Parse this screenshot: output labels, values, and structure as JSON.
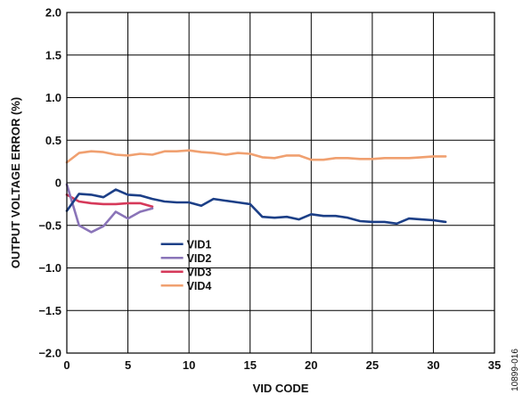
{
  "chart_data": {
    "type": "line",
    "title": "",
    "xlabel": "VID CODE",
    "ylabel": "OUTPUT VOLTAGE ERROR (%)",
    "xlim": [
      0,
      35
    ],
    "ylim": [
      -2.0,
      2.0
    ],
    "xticks": [
      0,
      5,
      10,
      15,
      20,
      25,
      30,
      35
    ],
    "yticks": [
      2.0,
      1.5,
      1.0,
      0.5,
      0,
      -0.5,
      -1.0,
      -1.5,
      -2.0
    ],
    "xtick_labels": [
      "0",
      "5",
      "10",
      "15",
      "20",
      "25",
      "30",
      "35"
    ],
    "ytick_labels": [
      "2.0",
      "1.5",
      "1.0",
      "0.5",
      "0",
      "−0.5",
      "−1.0",
      "−1.5",
      "−2.0"
    ],
    "grid": true,
    "legend_position": "center-left",
    "figure_id": "10899-016",
    "series": [
      {
        "name": "VID1",
        "color": "#1c3f87",
        "x": [
          0,
          1,
          2,
          3,
          4,
          5,
          6,
          7,
          8,
          9,
          10,
          11,
          12,
          13,
          14,
          15,
          16,
          17,
          18,
          19,
          20,
          21,
          22,
          23,
          24,
          25,
          26,
          27,
          28,
          29,
          30,
          31
        ],
        "y": [
          -0.33,
          -0.13,
          -0.14,
          -0.17,
          -0.08,
          -0.14,
          -0.15,
          -0.19,
          -0.22,
          -0.23,
          -0.23,
          -0.27,
          -0.19,
          -0.21,
          -0.23,
          -0.25,
          -0.4,
          -0.41,
          -0.4,
          -0.43,
          -0.37,
          -0.39,
          -0.39,
          -0.41,
          -0.45,
          -0.46,
          -0.46,
          -0.48,
          -0.42,
          -0.43,
          -0.44,
          -0.46
        ]
      },
      {
        "name": "VID2",
        "color": "#8a74b8",
        "x": [
          0,
          1,
          2,
          3,
          4,
          5,
          6,
          7
        ],
        "y": [
          -0.02,
          -0.5,
          -0.58,
          -0.51,
          -0.34,
          -0.42,
          -0.34,
          -0.3
        ]
      },
      {
        "name": "VID3",
        "color": "#d6395a",
        "x": [
          0,
          1,
          2,
          3,
          4,
          5,
          6,
          7
        ],
        "y": [
          -0.14,
          -0.22,
          -0.24,
          -0.25,
          -0.25,
          -0.24,
          -0.24,
          -0.28
        ]
      },
      {
        "name": "VID4",
        "color": "#f0a070",
        "x": [
          0,
          1,
          2,
          3,
          4,
          5,
          6,
          7,
          8,
          9,
          10,
          11,
          12,
          13,
          14,
          15,
          16,
          17,
          18,
          19,
          20,
          21,
          22,
          23,
          24,
          25,
          26,
          27,
          28,
          29,
          30,
          31
        ],
        "y": [
          0.24,
          0.35,
          0.37,
          0.36,
          0.33,
          0.32,
          0.34,
          0.33,
          0.37,
          0.37,
          0.38,
          0.36,
          0.35,
          0.33,
          0.35,
          0.34,
          0.3,
          0.29,
          0.32,
          0.32,
          0.27,
          0.27,
          0.29,
          0.29,
          0.28,
          0.28,
          0.29,
          0.29,
          0.29,
          0.3,
          0.31,
          0.31
        ]
      }
    ]
  }
}
